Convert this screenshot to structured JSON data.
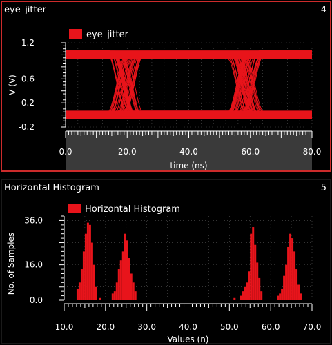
{
  "panels": [
    {
      "title": "eye_jitter",
      "number": "4"
    },
    {
      "title": "Horizontal Histogram",
      "number": "5"
    }
  ],
  "colors": {
    "trace": "#e8141b",
    "axis_band": "#3a3a3a",
    "frame_active": "#cc2b2b",
    "grid": "#555555"
  },
  "chart_data": [
    {
      "type": "line",
      "title": "eye_jitter",
      "legend": [
        "eye_jitter"
      ],
      "legend_position": "top-left",
      "xlabel": "time (ns)",
      "ylabel": "V (V)",
      "xlim": [
        0,
        80
      ],
      "ylim": [
        -0.2,
        1.2
      ],
      "x_ticks": [
        "0.0",
        "20.0",
        "40.0",
        "60.0",
        "80.0"
      ],
      "y_ticks": [
        "1.2",
        "0.6",
        "0.2",
        "-0.2"
      ],
      "x_tick_values": [
        0,
        20,
        40,
        60,
        80
      ],
      "y_tick_values": [
        1.2,
        0.6,
        0.2,
        -0.2
      ],
      "levels": {
        "high": 1.0,
        "low": 0.0,
        "band": 0.07
      },
      "crossings": [
        {
          "center": 19.5,
          "spread": 3.0
        },
        {
          "center": 58.5,
          "spread": 3.0
        }
      ],
      "grid": true
    },
    {
      "type": "bar",
      "title": "Horizontal Histogram",
      "legend": [
        "Horizontal Histogram"
      ],
      "legend_position": "top-left",
      "xlabel": "Values (n)",
      "ylabel": "No. of Samples",
      "xlim": [
        10,
        70
      ],
      "ylim": [
        0,
        38
      ],
      "x_ticks": [
        "10.0",
        "20.0",
        "30.0",
        "40.0",
        "50.0",
        "60.0",
        "70.0"
      ],
      "y_ticks": [
        "36.0",
        "16.0",
        "0.0"
      ],
      "x_tick_values": [
        10,
        20,
        30,
        40,
        50,
        60,
        70
      ],
      "y_tick_values": [
        36,
        16,
        0
      ],
      "bin_width": 0.5,
      "bins": [
        [
          13.0,
          5
        ],
        [
          13.5,
          8
        ],
        [
          14.0,
          14
        ],
        [
          14.5,
          22
        ],
        [
          15.0,
          30
        ],
        [
          15.5,
          35
        ],
        [
          16.0,
          34
        ],
        [
          16.5,
          26
        ],
        [
          17.0,
          16
        ],
        [
          17.5,
          6
        ],
        [
          18.5,
          1
        ],
        [
          21.5,
          3
        ],
        [
          22.0,
          4
        ],
        [
          22.5,
          8
        ],
        [
          23.0,
          14
        ],
        [
          23.5,
          18
        ],
        [
          24.0,
          22
        ],
        [
          24.5,
          30
        ],
        [
          25.0,
          27
        ],
        [
          25.5,
          19
        ],
        [
          26.0,
          12
        ],
        [
          26.5,
          8
        ],
        [
          27.0,
          4
        ],
        [
          51.0,
          1
        ],
        [
          52.5,
          2
        ],
        [
          53.0,
          4
        ],
        [
          53.5,
          6
        ],
        [
          54.0,
          8
        ],
        [
          54.5,
          13
        ],
        [
          55.0,
          30
        ],
        [
          55.5,
          33
        ],
        [
          56.0,
          25
        ],
        [
          56.5,
          17
        ],
        [
          57.0,
          10
        ],
        [
          57.5,
          4
        ],
        [
          61.5,
          2
        ],
        [
          62.0,
          3
        ],
        [
          62.5,
          5
        ],
        [
          63.0,
          11
        ],
        [
          63.5,
          16
        ],
        [
          64.0,
          24
        ],
        [
          64.5,
          30
        ],
        [
          65.0,
          28
        ],
        [
          65.5,
          22
        ],
        [
          66.0,
          14
        ],
        [
          66.5,
          7
        ],
        [
          67.0,
          3
        ]
      ],
      "grid": true
    }
  ]
}
